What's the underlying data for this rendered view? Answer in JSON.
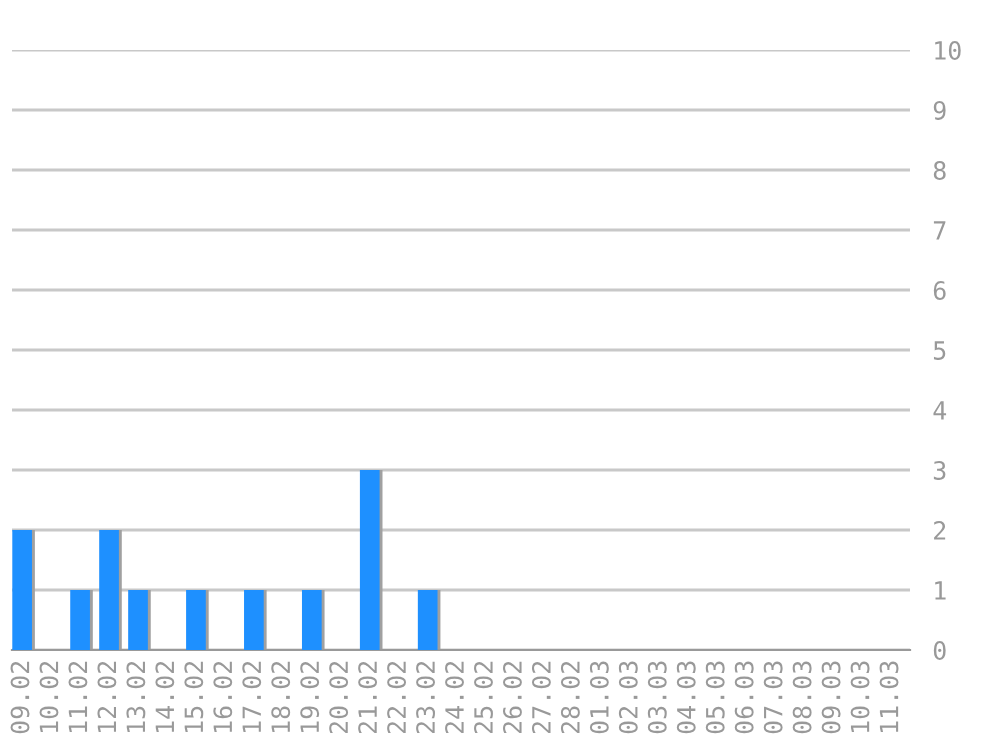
{
  "chart_data": {
    "type": "bar",
    "categories": [
      "09.02",
      "10.02",
      "11.02",
      "12.02",
      "13.02",
      "14.02",
      "15.02",
      "16.02",
      "17.02",
      "18.02",
      "19.02",
      "20.02",
      "21.02",
      "22.02",
      "23.02",
      "24.02",
      "25.02",
      "26.02",
      "27.02",
      "28.02",
      "01.03",
      "02.03",
      "03.03",
      "04.03",
      "05.03",
      "06.03",
      "07.03",
      "08.03",
      "09.03",
      "10.03",
      "11.03"
    ],
    "values": [
      2,
      0,
      1,
      2,
      1,
      0,
      1,
      0,
      1,
      0,
      1,
      0,
      3,
      0,
      1,
      0,
      0,
      0,
      0,
      0,
      0,
      0,
      0,
      0,
      0,
      0,
      0,
      0,
      0,
      0,
      0
    ],
    "color": "#1e90ff",
    "ylim": [
      0,
      10
    ],
    "yticks": [
      0,
      1,
      2,
      3,
      4,
      5,
      6,
      7,
      8,
      9,
      10
    ],
    "grid": "y"
  }
}
